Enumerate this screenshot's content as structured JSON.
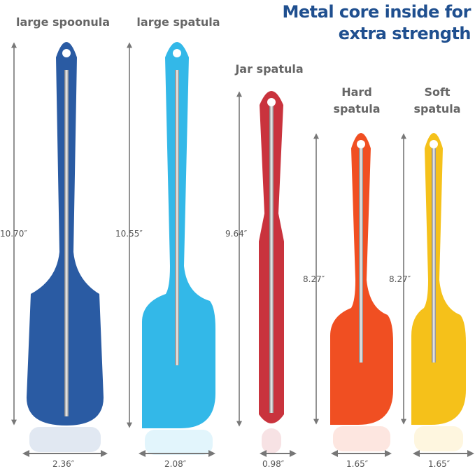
{
  "title_line1": "Metal core inside for",
  "title_line2": "extra strength",
  "title_color": "#1f4f8f",
  "products": [
    {
      "name": "large spoonula",
      "length": "10.70″",
      "width": "2.36″",
      "color": "#2a5ba3"
    },
    {
      "name": "large spatula",
      "length": "10.55″",
      "width": "2.08″",
      "color": "#33b8e8"
    },
    {
      "name": "Jar spatula",
      "length": "9.64″",
      "width": "0.98″",
      "color": "#c9333d"
    },
    {
      "name_line1": "Hard",
      "name_line2": "spatula",
      "length": "8.27″",
      "width": "1.65″",
      "color": "#f04f22"
    },
    {
      "name_line1": "Soft",
      "name_line2": "spatula",
      "length": "8.27″",
      "width": "1.65″",
      "color": "#f5c11a"
    }
  ]
}
